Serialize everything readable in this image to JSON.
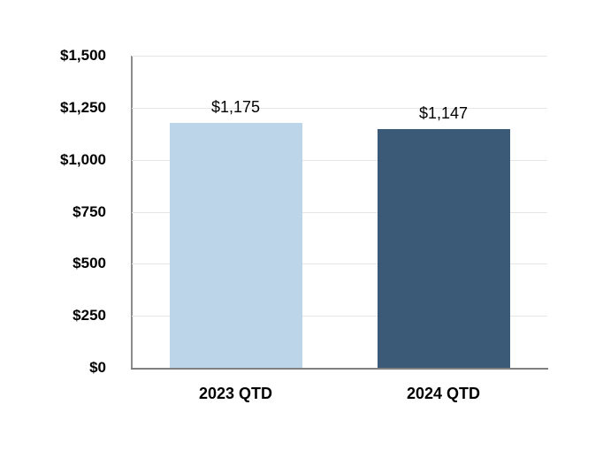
{
  "colors": {
    "background": "#ffffff",
    "gridline": "#e6e6e6",
    "y_axis_line": "#8c8c8c",
    "x_axis_line": "#7f7f7f",
    "text": "#000000"
  },
  "chart_data": {
    "type": "bar",
    "title": "",
    "xlabel": "",
    "ylabel": "",
    "categories": [
      "2023 QTD",
      "2024 QTD"
    ],
    "values": [
      1175,
      1147
    ],
    "value_labels": [
      "$1,175",
      "$1,147"
    ],
    "bar_colors": [
      "#bcd5e8",
      "#3a5a78"
    ],
    "ylim": [
      0,
      1500
    ],
    "ytick_interval": 250,
    "yticks": [
      0,
      250,
      500,
      750,
      1000,
      1250,
      1500
    ],
    "ytick_labels": [
      "$0",
      "$250",
      "$500",
      "$750",
      "$1,000",
      "$1,250",
      "$1,500"
    ],
    "grid": true,
    "legend_position": "none",
    "currency_prefix": "$"
  }
}
